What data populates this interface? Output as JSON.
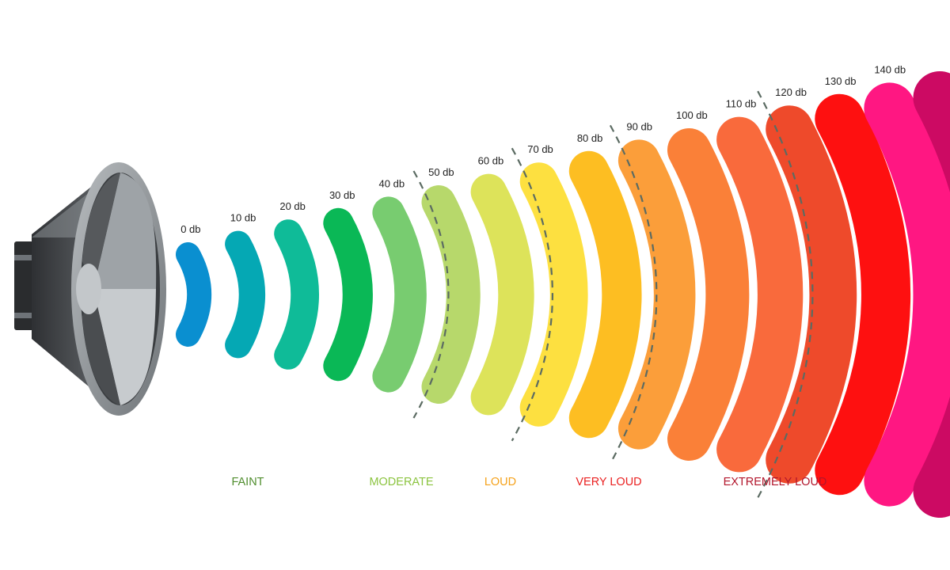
{
  "waves": [
    {
      "label": "0 db",
      "color": "#0a8fd0"
    },
    {
      "label": "10 db",
      "color": "#05a8b4"
    },
    {
      "label": "20 db",
      "color": "#0fbb98"
    },
    {
      "label": "30 db",
      "color": "#0ab856"
    },
    {
      "label": "40 db",
      "color": "#78cc70"
    },
    {
      "label": "50 db",
      "color": "#b7d86b"
    },
    {
      "label": "60 db",
      "color": "#dde35a"
    },
    {
      "label": "70 db",
      "color": "#fde040"
    },
    {
      "label": "80 db",
      "color": "#fdbe22"
    },
    {
      "label": "90 db",
      "color": "#fb9e3a"
    },
    {
      "label": "100 db",
      "color": "#fa8038"
    },
    {
      "label": "110 db",
      "color": "#f96a3c"
    },
    {
      "label": "120 db",
      "color": "#ee4a2b"
    },
    {
      "label": "130 db",
      "color": "#fe1010"
    },
    {
      "label": "140 db",
      "color": "#ff1782"
    },
    {
      "label": "",
      "color": "#cc0a63"
    }
  ],
  "categories": [
    {
      "label": "FAINT",
      "color": "#4f8d2d"
    },
    {
      "label": "MODERATE",
      "color": "#8cc440"
    },
    {
      "label": "LOUD",
      "color": "#f5a21b"
    },
    {
      "label": "VERY LOUD",
      "color": "#ea2121"
    },
    {
      "label": "EXTREMELY LOUD",
      "color": "#b2162c"
    }
  ],
  "separator_color": "#5b6b62",
  "speaker": {
    "icon": "speaker-icon"
  }
}
